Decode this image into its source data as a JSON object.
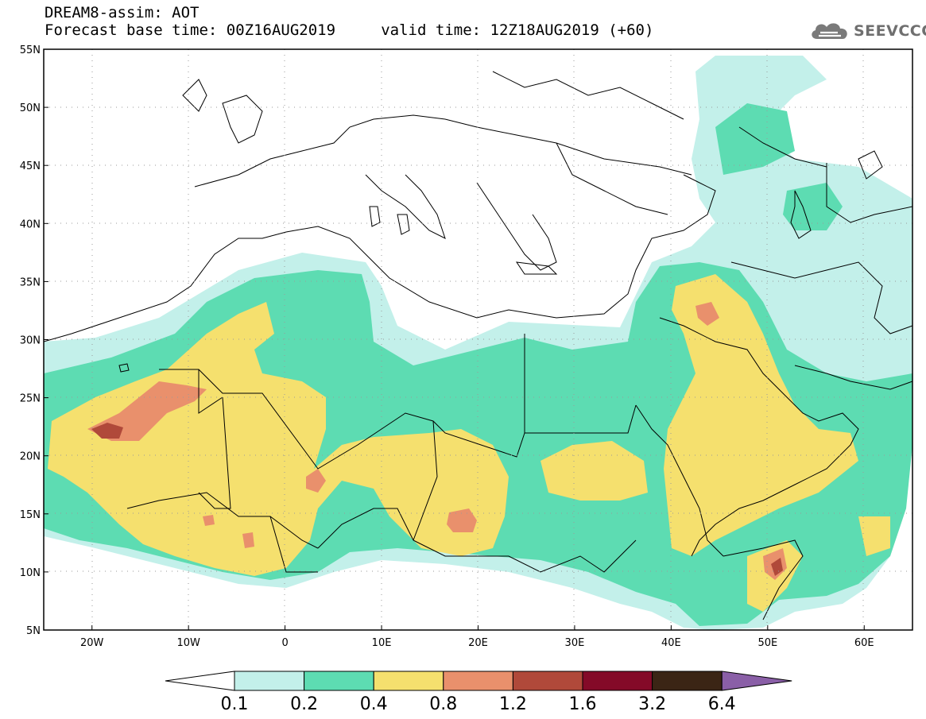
{
  "header": {
    "line1": "DREAM8-assim: AOT",
    "line2": "Forecast base time: 00Z16AUG2019     valid time: 12Z18AUG2019 (+60)"
  },
  "logo": {
    "text": "SEEVCCC",
    "icon": "cloud-icon"
  },
  "map": {
    "lon_range": [
      -25,
      65
    ],
    "lat_range": [
      5,
      55
    ],
    "lat_ticks": [
      {
        "value": 55,
        "label": "55N"
      },
      {
        "value": 50,
        "label": "50N"
      },
      {
        "value": 45,
        "label": "45N"
      },
      {
        "value": 40,
        "label": "40N"
      },
      {
        "value": 35,
        "label": "35N"
      },
      {
        "value": 30,
        "label": "30N"
      },
      {
        "value": 25,
        "label": "25N"
      },
      {
        "value": 20,
        "label": "20N"
      },
      {
        "value": 15,
        "label": "15N"
      },
      {
        "value": 10,
        "label": "10N"
      },
      {
        "value": 5,
        "label": "5N"
      }
    ],
    "lon_ticks": [
      {
        "value": -20,
        "label": "20W"
      },
      {
        "value": -10,
        "label": "10W"
      },
      {
        "value": 0,
        "label": "0"
      },
      {
        "value": 10,
        "label": "10E"
      },
      {
        "value": 20,
        "label": "20E"
      },
      {
        "value": 30,
        "label": "30E"
      },
      {
        "value": 40,
        "label": "40E"
      },
      {
        "value": 50,
        "label": "50E"
      },
      {
        "value": 60,
        "label": "60E"
      }
    ]
  },
  "colorbar": {
    "colors": [
      "#c3f0ea",
      "#5ddcb2",
      "#f5e06e",
      "#e9906c",
      "#b0493a",
      "#840a28",
      "#3b2515",
      "#8a5fa7"
    ],
    "labels": [
      "0.1",
      "0.2",
      "0.4",
      "0.8",
      "1.2",
      "1.6",
      "3.2",
      "6.4"
    ]
  }
}
